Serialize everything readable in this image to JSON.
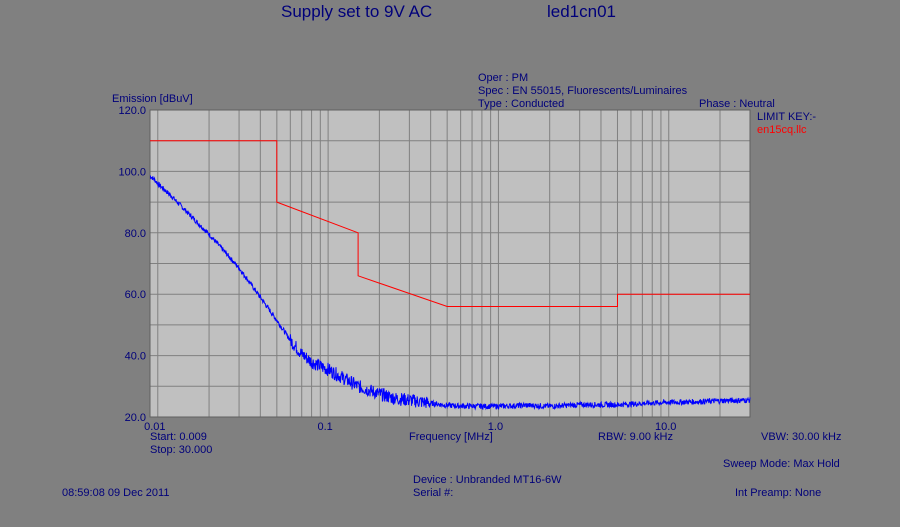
{
  "header": {
    "title_left": "Supply set to 9V AC",
    "title_right": "led1cn01",
    "oper": "Oper : PM",
    "spec": "Spec : EN 55015, Fluorescents/Luminaires",
    "type": "Type : Conducted",
    "phase": "Phase : Neutral"
  },
  "limit_key": {
    "title": "LIMIT KEY:-",
    "entry": "en15cq.llc"
  },
  "footer": {
    "start": "Start: 0.009",
    "stop": "Stop: 30.000",
    "rbw": "RBW: 9.00 kHz",
    "vbw": "VBW: 30.00 kHz",
    "sweep_mode": "Sweep Mode: Max Hold",
    "device": "Device : Unbranded MT16-6W",
    "serial": "Serial #:",
    "timestamp": "08:59:08 09 Dec 2011",
    "preamp": "Int Preamp: None"
  },
  "chart_data": {
    "type": "line",
    "xscale": "log",
    "xlim": [
      0.009,
      30.0
    ],
    "ylim": [
      20.0,
      120.0
    ],
    "ylabel": "Emission [dBuV]",
    "xlabel": "Frequency [MHz]",
    "y_ticks": [
      "120.0",
      "100.0",
      "80.0",
      "60.0",
      "40.0",
      "20.0"
    ],
    "y_tick_values": [
      120,
      100,
      80,
      60,
      40,
      20
    ],
    "x_ticks": [
      "0.01",
      "0.1",
      "1.0",
      "10.0"
    ],
    "x_tick_values": [
      0.01,
      0.1,
      1.0,
      10.0
    ],
    "grid": true,
    "colors": {
      "plot_bg": "#c0c0c0",
      "grid": "#808080",
      "limit": "#ff0000",
      "trace": "#0000ff",
      "text": "#00007a"
    },
    "limit_line": {
      "name": "en15cq.llc",
      "x": [
        0.009,
        0.05,
        0.05,
        0.15,
        0.15,
        0.5,
        5.0,
        5.0,
        30.0
      ],
      "y": [
        110,
        110,
        90,
        80,
        66,
        56,
        56,
        60,
        60
      ]
    },
    "trace": {
      "x": [
        0.009,
        0.0095,
        0.01,
        0.012,
        0.015,
        0.02,
        0.025,
        0.03,
        0.035,
        0.04,
        0.05,
        0.06,
        0.07,
        0.08,
        0.09,
        0.1,
        0.12,
        0.15,
        0.2,
        0.25,
        0.3,
        0.4,
        0.5,
        0.6,
        0.8,
        1.0,
        1.5,
        2.0,
        3.0,
        5.0,
        7.0,
        10.0,
        15.0,
        20.0,
        30.0
      ],
      "y": [
        98.5,
        97.5,
        96.0,
        92.0,
        86.5,
        79.5,
        73.5,
        68.5,
        63.5,
        59.0,
        51.5,
        45.0,
        40.5,
        38.0,
        36.5,
        35.5,
        33.0,
        30.0,
        27.5,
        26.0,
        25.5,
        24.5,
        23.8,
        23.6,
        23.5,
        23.5,
        23.8,
        23.5,
        24.0,
        24.0,
        24.4,
        24.8,
        25.0,
        25.3,
        25.5
      ]
    }
  }
}
